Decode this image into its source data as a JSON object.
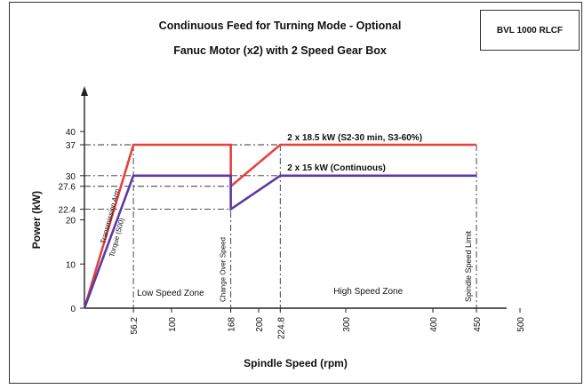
{
  "model_label": "BVL 1000 RLCF",
  "title_line1": "Condinuous Feed for Turning Mode - Optional",
  "title_line2": "Fanuc Motor (x2) with 2 Speed Gear Box",
  "chart_data": {
    "type": "line",
    "xlabel": "Spindle Speed (rpm)",
    "ylabel": "Power (kW)",
    "xlim": [
      0,
      550
    ],
    "ylim": [
      0,
      45
    ],
    "x_ticks": [
      "56.2",
      "100",
      "168",
      "200",
      "224.8",
      "300",
      "400",
      "450",
      "500"
    ],
    "y_ticks": [
      "0",
      "10",
      "20",
      "22.4",
      "27.6",
      "30",
      "37",
      "40"
    ],
    "colors": {
      "red": "#e8403a",
      "purple": "#5b3aa6"
    },
    "series": [
      {
        "name": "2 x 18.5 kW (S2-30 min, S3-60%)",
        "color": "red",
        "x": [
          0,
          56.2,
          168,
          168,
          224.8,
          450
        ],
        "y": [
          0,
          37,
          37,
          27.6,
          37,
          37
        ]
      },
      {
        "name": "2 x 15 kW (Continuous)",
        "color": "purple",
        "x": [
          0,
          56.2,
          168,
          168,
          224.8,
          450
        ],
        "y": [
          0,
          30,
          30,
          22.4,
          30,
          30
        ]
      }
    ],
    "reference_lines": {
      "horizontal": [
        37,
        30,
        27.6,
        22.4
      ],
      "vertical": [
        56.2,
        168,
        224.8,
        450
      ]
    },
    "annotations": {
      "low_zone": "Low Speed Zone",
      "high_zone": "High Speed Zone",
      "transmission": "Transmission Arm",
      "torque": "Torque (500)",
      "change_over": "Change Over Speed",
      "spindle_limit": "Spindle Speed Limit"
    }
  }
}
